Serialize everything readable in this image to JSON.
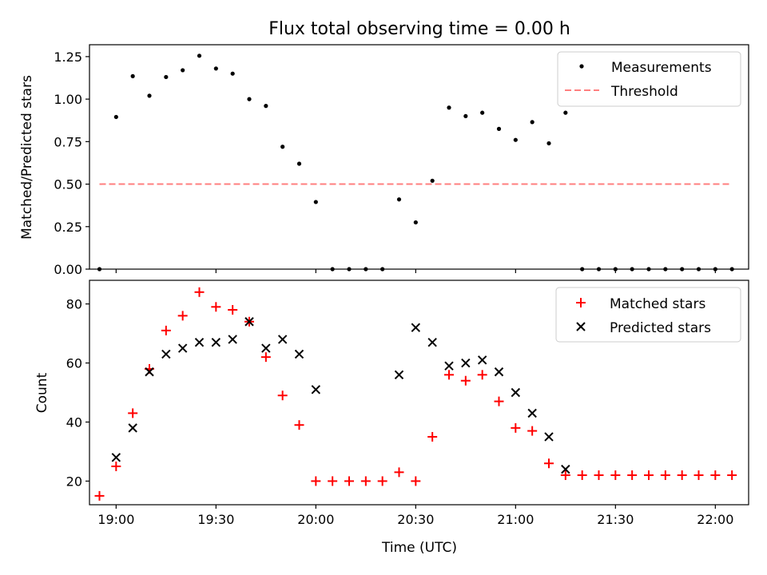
{
  "title": "Flux total observing time = 0.00 h",
  "xlabel": "Time (UTC)",
  "x_ticks": [
    "19:00",
    "19:30",
    "20:00",
    "20:30",
    "21:00",
    "21:30",
    "22:00"
  ],
  "colors": {
    "measurements": "#000000",
    "threshold": "#ff7f7f",
    "matched": "#ff0000",
    "predicted": "#000000"
  },
  "chart_data": [
    {
      "type": "scatter",
      "ylabel": "Matched/Predicted stars",
      "ylim": [
        0,
        1.32
      ],
      "xlim": [
        "18:52",
        "22:10"
      ],
      "y_ticks": [
        "0.00",
        "0.25",
        "0.50",
        "0.75",
        "1.00",
        "1.25"
      ],
      "legend_position": "top-right",
      "x": [
        "18:55",
        "19:00",
        "19:05",
        "19:10",
        "19:15",
        "19:20",
        "19:25",
        "19:30",
        "19:35",
        "19:40",
        "19:45",
        "19:50",
        "19:55",
        "20:00",
        "20:05",
        "20:10",
        "20:15",
        "20:20",
        "20:25",
        "20:30",
        "20:35",
        "20:40",
        "20:45",
        "20:50",
        "20:55",
        "21:00",
        "21:05",
        "21:10",
        "21:15",
        "21:20",
        "21:25",
        "21:30",
        "21:35",
        "21:40",
        "21:45",
        "21:50",
        "21:55",
        "22:00",
        "22:05"
      ],
      "series": [
        {
          "name": "Measurements",
          "values": [
            0.0,
            0.895,
            1.135,
            1.02,
            1.13,
            1.17,
            1.255,
            1.18,
            1.15,
            1.0,
            0.96,
            0.72,
            0.62,
            0.395,
            0.0,
            0.0,
            0.0,
            0.0,
            0.41,
            0.275,
            0.52,
            0.95,
            0.9,
            0.92,
            0.825,
            0.76,
            0.865,
            0.74,
            0.92,
            0.0,
            0.0,
            0.0,
            0.0,
            0.0,
            0.0,
            0.0,
            0.0,
            0.0,
            0.0
          ]
        },
        {
          "name": "Threshold",
          "x": [
            "18:55",
            "22:05"
          ],
          "values": [
            0.5,
            0.5
          ]
        }
      ]
    },
    {
      "type": "scatter",
      "ylabel": "Count",
      "ylim": [
        12,
        88
      ],
      "xlim": [
        "18:52",
        "22:10"
      ],
      "y_ticks": [
        "20",
        "40",
        "60",
        "80"
      ],
      "legend_position": "top-right",
      "series": [
        {
          "name": "Matched stars",
          "x": [
            "18:55",
            "19:00",
            "19:05",
            "19:10",
            "19:15",
            "19:20",
            "19:25",
            "19:30",
            "19:35",
            "19:40",
            "19:45",
            "19:50",
            "19:55",
            "20:00",
            "20:05",
            "20:10",
            "20:15",
            "20:20",
            "20:25",
            "20:30",
            "20:35",
            "20:40",
            "20:45",
            "20:50",
            "20:55",
            "21:00",
            "21:05",
            "21:10",
            "21:15",
            "21:20",
            "21:25",
            "21:30",
            "21:35",
            "21:40",
            "21:45",
            "21:50",
            "21:55",
            "22:00",
            "22:05"
          ],
          "values": [
            15,
            25,
            43,
            58,
            71,
            76,
            84,
            79,
            78,
            74,
            62,
            49,
            39,
            20,
            20,
            20,
            20,
            20,
            23,
            20,
            35,
            56,
            54,
            56,
            47,
            38,
            37,
            26,
            22,
            22,
            22,
            22,
            22,
            22,
            22,
            22,
            22,
            22,
            22
          ]
        },
        {
          "name": "Predicted stars",
          "x": [
            "19:00",
            "19:05",
            "19:10",
            "19:15",
            "19:20",
            "19:25",
            "19:30",
            "19:35",
            "19:40",
            "19:45",
            "19:50",
            "19:55",
            "20:00",
            "20:25",
            "20:30",
            "20:35",
            "20:40",
            "20:45",
            "20:50",
            "20:55",
            "21:00",
            "21:05",
            "21:10",
            "21:15"
          ],
          "values": [
            28,
            38,
            57,
            63,
            65,
            67,
            67,
            68,
            74,
            65,
            68,
            63,
            51,
            56,
            72,
            67,
            59,
            60,
            61,
            57,
            50,
            43,
            35,
            24
          ]
        }
      ]
    }
  ]
}
